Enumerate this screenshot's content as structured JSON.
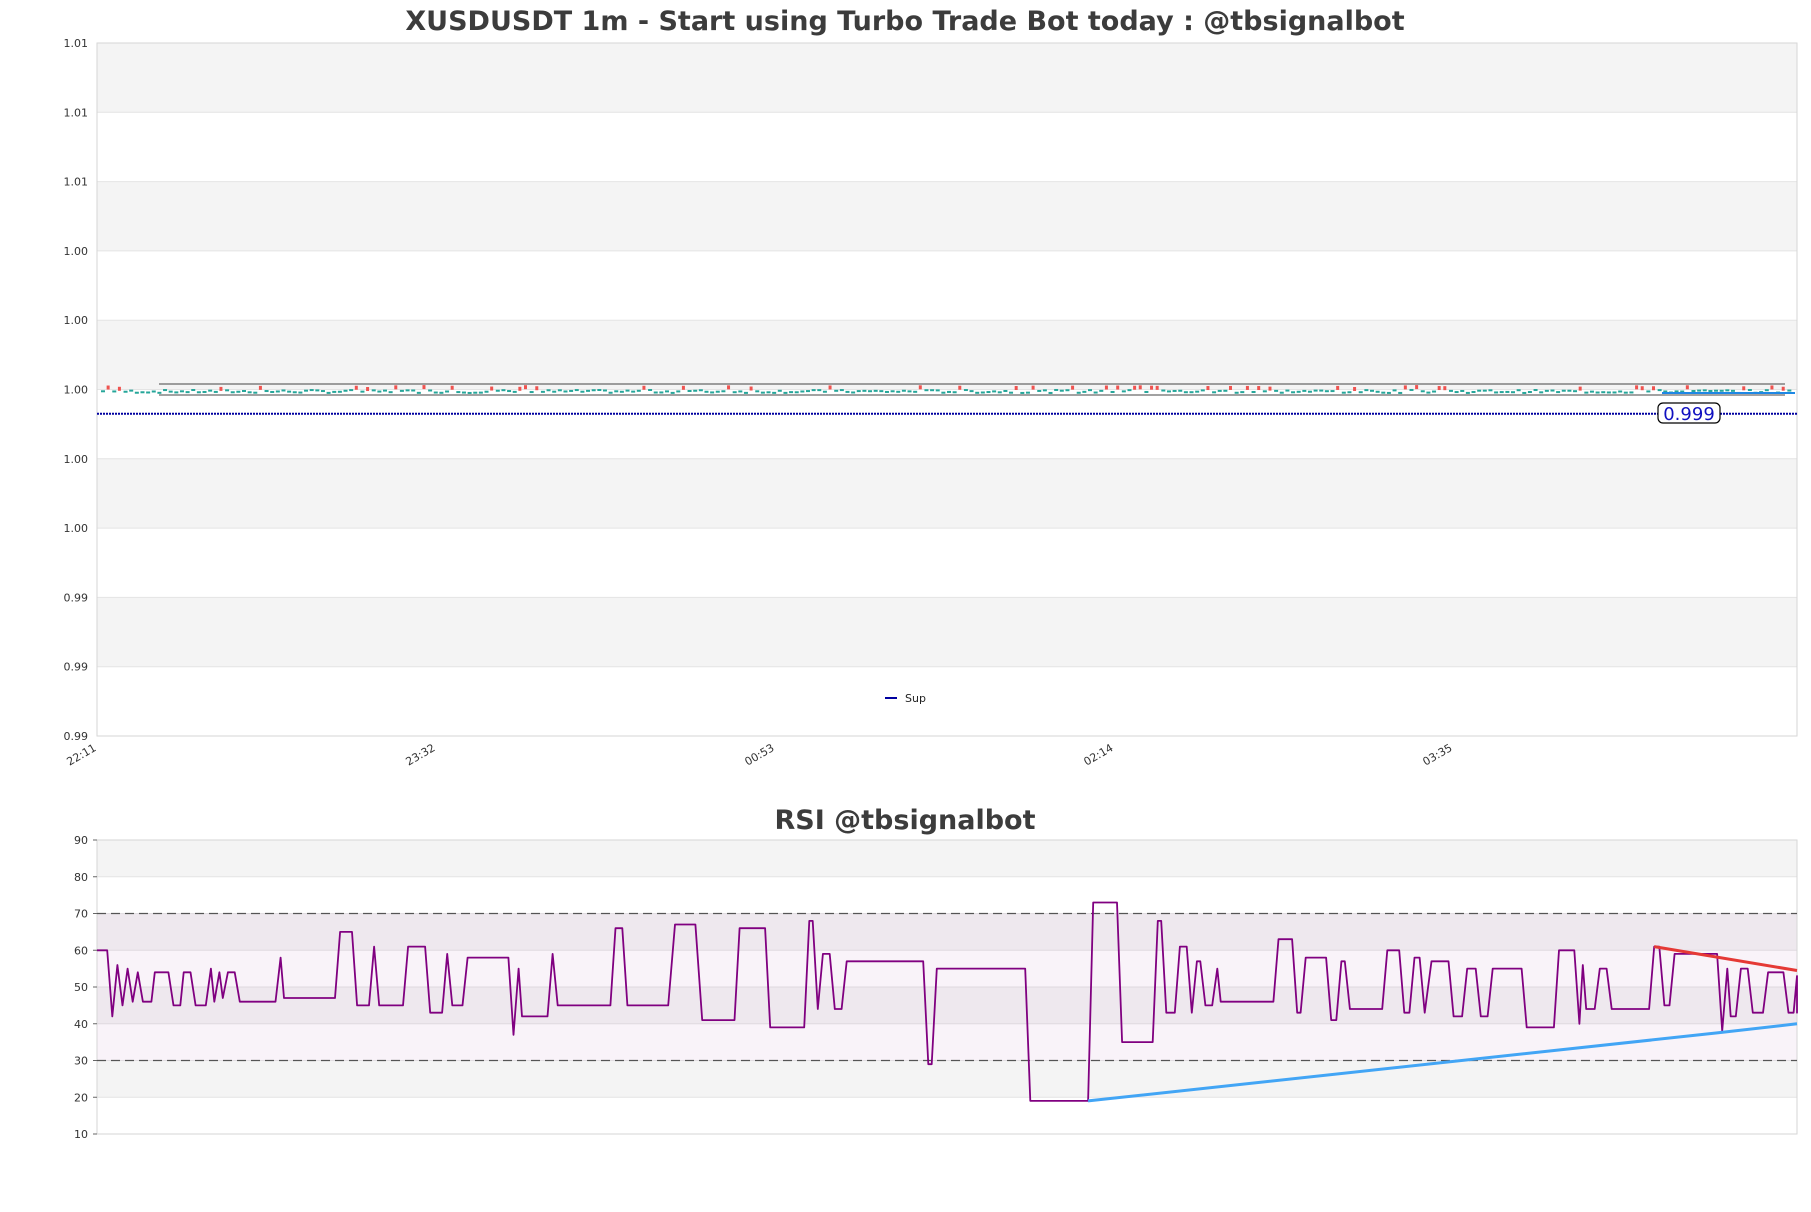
{
  "chart_data": [
    {
      "type": "candlestick",
      "title": "XUSDUSDT 1m - Start using Turbo Trade Bot today : @tbsignalbot",
      "ylim": [
        0.99,
        1.01
      ],
      "y_tick_labels": [
        "1.01",
        "1.01",
        "1.01",
        "1.00",
        "1.00",
        "1.00",
        "1.00",
        "1.00",
        "0.99",
        "0.99",
        "0.99"
      ],
      "x_tick_labels": [
        "22:11",
        "23:32",
        "00:53",
        "02:14",
        "03:35"
      ],
      "grid": true,
      "band_shading": true,
      "price_band": {
        "low": 0.9999,
        "high": 1.0001
      },
      "support": {
        "name": "Sup",
        "value": 0.9993,
        "color": "#0000a0"
      },
      "last_price_label": "0.999",
      "legend": {
        "placement": "bottom-center",
        "entries": [
          "Sup"
        ]
      },
      "colors": {
        "up": "#26a69a",
        "down": "#ef5350",
        "price_label": "#1010c0"
      }
    },
    {
      "type": "line",
      "title": "RSI @tbsignalbot",
      "ylim": [
        10,
        90
      ],
      "y_ticks": [
        10,
        20,
        30,
        40,
        50,
        60,
        70,
        80,
        90
      ],
      "overbought": 70,
      "oversold": 30,
      "grid": true,
      "series": [
        {
          "color": "#800080",
          "points": [
            [
              0,
              60
            ],
            [
              0.6,
              60
            ],
            [
              0.9,
              42
            ],
            [
              1.2,
              56
            ],
            [
              1.5,
              45
            ],
            [
              1.8,
              55
            ],
            [
              2.1,
              46
            ],
            [
              2.4,
              54
            ],
            [
              2.7,
              46
            ],
            [
              3.2,
              46
            ],
            [
              3.4,
              54
            ],
            [
              4.2,
              54
            ],
            [
              4.5,
              45
            ],
            [
              4.9,
              45
            ],
            [
              5.1,
              54
            ],
            [
              5.5,
              54
            ],
            [
              5.8,
              45
            ],
            [
              6.4,
              45
            ],
            [
              6.7,
              55
            ],
            [
              6.9,
              46
            ],
            [
              7.2,
              54
            ],
            [
              7.4,
              47
            ],
            [
              7.7,
              54
            ],
            [
              8.1,
              54
            ],
            [
              8.4,
              46
            ],
            [
              10.5,
              46
            ],
            [
              10.8,
              58
            ],
            [
              11,
              47
            ],
            [
              14,
              47
            ],
            [
              14.3,
              65
            ],
            [
              15,
              65
            ],
            [
              15.3,
              45
            ],
            [
              16,
              45
            ],
            [
              16.3,
              61
            ],
            [
              16.6,
              45
            ],
            [
              18,
              45
            ],
            [
              18.3,
              61
            ],
            [
              19.3,
              61
            ],
            [
              19.6,
              43
            ],
            [
              20.3,
              43
            ],
            [
              20.6,
              59
            ],
            [
              20.9,
              45
            ],
            [
              21.5,
              45
            ],
            [
              21.8,
              58
            ],
            [
              24.2,
              58
            ],
            [
              24.5,
              37
            ],
            [
              24.8,
              55
            ],
            [
              25,
              42
            ],
            [
              26.5,
              42
            ],
            [
              26.8,
              59
            ],
            [
              27.1,
              45
            ],
            [
              30.2,
              45
            ],
            [
              30.5,
              66
            ],
            [
              30.9,
              66
            ],
            [
              31.2,
              45
            ],
            [
              33.6,
              45
            ],
            [
              34,
              67
            ],
            [
              35.2,
              67
            ],
            [
              35.6,
              41
            ],
            [
              37.5,
              41
            ],
            [
              37.8,
              66
            ],
            [
              39.3,
              66
            ],
            [
              39.6,
              39
            ],
            [
              41.6,
              39
            ],
            [
              41.9,
              68
            ],
            [
              42.1,
              68
            ],
            [
              42.4,
              44
            ],
            [
              42.7,
              59
            ],
            [
              43.1,
              59
            ],
            [
              43.4,
              44
            ],
            [
              43.8,
              44
            ],
            [
              44.1,
              57
            ],
            [
              48.6,
              57
            ],
            [
              48.9,
              29
            ],
            [
              49.1,
              29
            ],
            [
              49.4,
              55
            ],
            [
              54.6,
              55
            ],
            [
              54.9,
              19
            ],
            [
              58.3,
              19
            ],
            [
              58.6,
              73
            ],
            [
              60,
              73
            ],
            [
              60.3,
              35
            ],
            [
              62.1,
              35
            ],
            [
              62.4,
              68
            ],
            [
              62.6,
              68
            ],
            [
              62.9,
              43
            ],
            [
              63.4,
              43
            ],
            [
              63.7,
              61
            ],
            [
              64.1,
              61
            ],
            [
              64.4,
              43
            ],
            [
              64.7,
              57
            ],
            [
              64.9,
              57
            ],
            [
              65.2,
              45
            ],
            [
              65.6,
              45
            ],
            [
              65.9,
              55
            ],
            [
              66.1,
              46
            ],
            [
              69.2,
              46
            ],
            [
              69.5,
              63
            ],
            [
              70.3,
              63
            ],
            [
              70.6,
              43
            ],
            [
              70.8,
              43
            ],
            [
              71.1,
              58
            ],
            [
              72.3,
              58
            ],
            [
              72.6,
              41
            ],
            [
              72.9,
              41
            ],
            [
              73.2,
              57
            ],
            [
              73.4,
              57
            ],
            [
              73.7,
              44
            ],
            [
              75.6,
              44
            ],
            [
              75.9,
              60
            ],
            [
              76.6,
              60
            ],
            [
              76.9,
              43
            ],
            [
              77.2,
              43
            ],
            [
              77.5,
              58
            ],
            [
              77.8,
              58
            ],
            [
              78.1,
              43
            ],
            [
              78.5,
              57
            ],
            [
              79.5,
              57
            ],
            [
              79.8,
              42
            ],
            [
              80.3,
              42
            ],
            [
              80.6,
              55
            ],
            [
              81.1,
              55
            ],
            [
              81.4,
              42
            ],
            [
              81.8,
              42
            ],
            [
              82.1,
              55
            ],
            [
              83.8,
              55
            ],
            [
              84.1,
              39
            ],
            [
              85.7,
              39
            ],
            [
              86,
              60
            ],
            [
              86.9,
              60
            ],
            [
              87.2,
              40
            ],
            [
              87.4,
              56
            ],
            [
              87.6,
              44
            ],
            [
              88.1,
              44
            ],
            [
              88.4,
              55
            ],
            [
              88.8,
              55
            ],
            [
              89.1,
              44
            ],
            [
              91.3,
              44
            ],
            [
              91.6,
              61
            ],
            [
              91.9,
              61
            ],
            [
              92.2,
              45
            ],
            [
              92.5,
              45
            ],
            [
              92.8,
              59
            ],
            [
              95.3,
              59
            ],
            [
              95.6,
              38
            ],
            [
              95.9,
              55
            ],
            [
              96.1,
              42
            ],
            [
              96.4,
              42
            ],
            [
              96.7,
              55
            ],
            [
              97.1,
              55
            ],
            [
              97.4,
              43
            ],
            [
              98,
              43
            ],
            [
              98.3,
              54
            ],
            [
              99.2,
              54
            ],
            [
              99.5,
              43
            ],
            [
              99.8,
              43
            ],
            [
              100.1,
              53
            ],
            [
              100.4,
              53
            ],
            [
              100.7,
              43
            ],
            [
              101.6,
              43
            ],
            [
              101.9,
              53
            ],
            [
              102.6,
              53
            ],
            [
              102.9,
              43
            ],
            [
              103.5,
              43
            ]
          ]
        }
      ],
      "trendlines": [
        {
          "color": "#e53935",
          "points": [
            [
              91.6,
              61
            ],
            [
              100,
              54.5
            ]
          ]
        },
        {
          "color": "#42a5f5",
          "points": [
            [
              58.3,
              19
            ],
            [
              95.3,
              37.5
            ],
            [
              100,
              40
            ]
          ]
        }
      ]
    }
  ]
}
